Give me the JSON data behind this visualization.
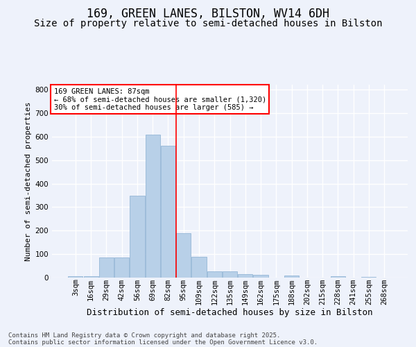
{
  "title": "169, GREEN LANES, BILSTON, WV14 6DH",
  "subtitle": "Size of property relative to semi-detached houses in Bilston",
  "xlabel": "Distribution of semi-detached houses by size in Bilston",
  "ylabel": "Number of semi-detached properties",
  "categories": [
    "3sqm",
    "16sqm",
    "29sqm",
    "42sqm",
    "56sqm",
    "69sqm",
    "82sqm",
    "95sqm",
    "109sqm",
    "122sqm",
    "135sqm",
    "149sqm",
    "162sqm",
    "175sqm",
    "188sqm",
    "202sqm",
    "215sqm",
    "228sqm",
    "241sqm",
    "255sqm",
    "268sqm"
  ],
  "values": [
    5,
    5,
    85,
    85,
    350,
    610,
    560,
    190,
    90,
    28,
    28,
    15,
    13,
    0,
    8,
    0,
    0,
    5,
    0,
    4,
    0
  ],
  "bar_color": "#b8d0e8",
  "bar_edge_color": "#88aed0",
  "vline_x": 6.5,
  "vline_color": "red",
  "annotation_title": "169 GREEN LANES: 87sqm",
  "annotation_line2": "← 68% of semi-detached houses are smaller (1,320)",
  "annotation_line3": "30% of semi-detached houses are larger (585) →",
  "annotation_box_facecolor": "#ffffff",
  "annotation_box_edgecolor": "red",
  "ylim": [
    0,
    820
  ],
  "yticks": [
    0,
    100,
    200,
    300,
    400,
    500,
    600,
    700,
    800
  ],
  "bg_color": "#eef2fb",
  "plot_bg_color": "#eef2fb",
  "grid_color": "#ffffff",
  "footer_line1": "Contains HM Land Registry data © Crown copyright and database right 2025.",
  "footer_line2": "Contains public sector information licensed under the Open Government Licence v3.0.",
  "title_fontsize": 12,
  "subtitle_fontsize": 10,
  "ylabel_fontsize": 8,
  "xlabel_fontsize": 9,
  "tick_fontsize": 7.5,
  "annotation_fontsize": 7.5,
  "footer_fontsize": 6.5
}
